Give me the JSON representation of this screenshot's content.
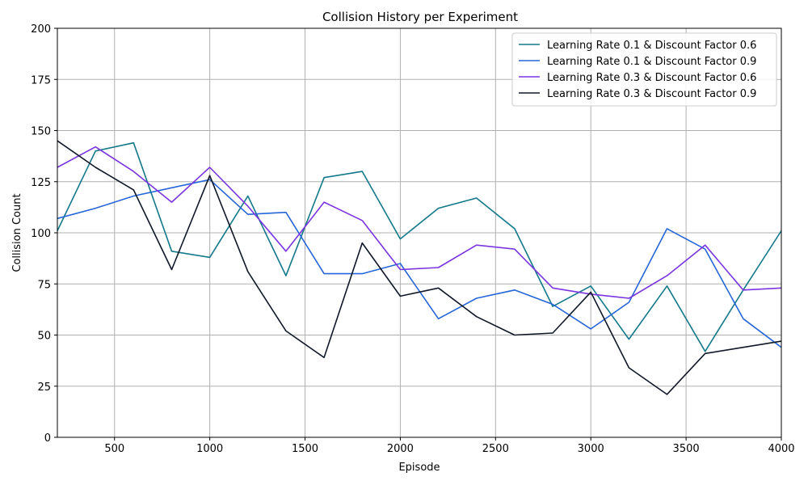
{
  "chart_data": {
    "type": "line",
    "title": "Collision History per Experiment",
    "xlabel": "Episode",
    "ylabel": "Collision Count",
    "xlim": [
      200,
      4000
    ],
    "ylim": [
      0,
      200
    ],
    "xticks": [
      500,
      1000,
      1500,
      2000,
      2500,
      3000,
      3500,
      4000
    ],
    "yticks": [
      0,
      25,
      50,
      75,
      100,
      125,
      150,
      175,
      200
    ],
    "grid": true,
    "legend_position": "top-right",
    "x": [
      200,
      400,
      600,
      800,
      1000,
      1200,
      1400,
      1600,
      1800,
      2000,
      2200,
      2400,
      2600,
      2800,
      3000,
      3200,
      3400,
      3600,
      3800,
      4000
    ],
    "series": [
      {
        "name": "Learning Rate 0.1 & Discount Factor 0.6",
        "color": "#13788a",
        "values": [
          101,
          140,
          144,
          91,
          88,
          118,
          79,
          127,
          130,
          97,
          112,
          117,
          102,
          64,
          74,
          48,
          74,
          42,
          72,
          101
        ]
      },
      {
        "name": "Learning Rate 0.1 & Discount Factor 0.9",
        "color": "#2566d8",
        "values": [
          107,
          112,
          118,
          122,
          126,
          109,
          110,
          80,
          80,
          85,
          58,
          68,
          72,
          65,
          53,
          66,
          102,
          92,
          58,
          44
        ]
      },
      {
        "name": "Learning Rate 0.3 & Discount Factor 0.6",
        "color": "#7a35e0",
        "values": [
          132,
          142,
          130,
          115,
          132,
          113,
          91,
          115,
          106,
          82,
          83,
          94,
          92,
          73,
          70,
          68,
          79,
          94,
          72,
          73
        ]
      },
      {
        "name": "Learning Rate 0.3 & Discount Factor 0.9",
        "color": "#101828",
        "values": [
          145,
          132,
          121,
          82,
          128,
          81,
          52,
          39,
          95,
          69,
          73,
          59,
          50,
          51,
          71,
          34,
          21,
          41,
          44,
          47
        ]
      }
    ]
  }
}
